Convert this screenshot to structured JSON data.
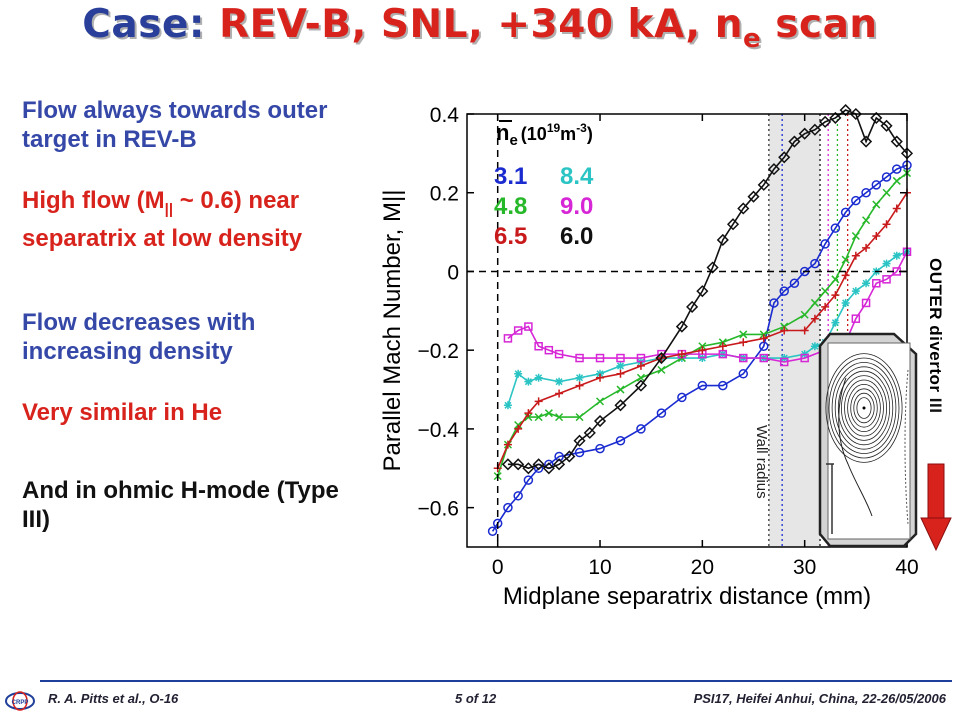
{
  "slide": {
    "title_case": "Case:",
    "title_main": "REV-B, SNL, +340 kA, n",
    "title_sub": "e",
    "title_end": " scan"
  },
  "bullets": {
    "b1": "Flow always towards outer target in REV-B",
    "b2_pre": "High flow (M",
    "b2_sub": "||",
    "b2_post": " ~ 0.6) near separatrix at low density",
    "b3": "Flow decreases with increasing density",
    "b4": "Very similar in He",
    "b5": "And in ohmic H-mode (Type III)"
  },
  "legend": {
    "header_sym": "n",
    "header_sub": "e",
    "header_unit": "(10",
    "header_exp": "19",
    "header_m": "m",
    "header_exp2": "-3",
    "header_close": ")",
    "entries": [
      {
        "label": "3.1",
        "color": "#1a2bd0"
      },
      {
        "label": "8.4",
        "color": "#2bc4c4"
      },
      {
        "label": "4.8",
        "color": "#27b82a"
      },
      {
        "label": "9.0",
        "color": "#d626d6"
      },
      {
        "label": "6.5",
        "color": "#c8191b"
      },
      {
        "label": "6.0",
        "color": "#111111"
      }
    ]
  },
  "annotations": {
    "wall_radius": "Wall radius",
    "outer_divertor": "OUTER divertor",
    "outer_divertor_sym": "III"
  },
  "footer": {
    "left": "R. A. Pitts et al., O-16",
    "center": "5 of 12",
    "right": "PSI17, Heifei Anhui, China, 22-26/05/2006",
    "logo_text": "CRPP"
  },
  "chart_data": {
    "type": "line",
    "xlabel": "Midplane separatrix distance (mm)",
    "ylabel": "Parallel Mach Number, M||",
    "xlim": [
      -3,
      40
    ],
    "ylim": [
      -0.7,
      0.4
    ],
    "xticks": [
      0,
      10,
      20,
      30,
      40
    ],
    "yticks": [
      0.4,
      0.2,
      0,
      -0.2,
      -0.4,
      -0.6
    ],
    "ytick_labels": [
      "0.4",
      "0.2",
      "0",
      "−0.2",
      "−0.4",
      "−0.6"
    ],
    "shaded_band": [
      26.5,
      31.5
    ],
    "series": [
      {
        "name": "3.1",
        "color": "#1a2bd0",
        "marker": "circle",
        "x": [
          -0.5,
          0,
          1,
          2,
          3,
          4,
          5,
          6,
          8,
          10,
          12,
          14,
          16,
          18,
          20,
          22,
          24,
          26,
          27,
          28,
          29,
          30,
          31,
          32,
          33,
          34,
          35,
          36,
          37,
          38,
          39,
          40
        ],
        "y": [
          -0.66,
          -0.64,
          -0.6,
          -0.57,
          -0.53,
          -0.5,
          -0.49,
          -0.47,
          -0.46,
          -0.45,
          -0.43,
          -0.4,
          -0.36,
          -0.32,
          -0.29,
          -0.29,
          -0.26,
          -0.19,
          -0.08,
          -0.05,
          -0.03,
          0,
          0.02,
          0.07,
          0.11,
          0.15,
          0.18,
          0.2,
          0.22,
          0.24,
          0.26,
          0.27
        ]
      },
      {
        "name": "8.4",
        "color": "#2bc4c4",
        "marker": "star",
        "x": [
          1,
          2,
          3,
          4,
          6,
          8,
          10,
          12,
          14,
          16,
          18,
          20,
          22,
          24,
          26,
          28,
          30,
          31,
          32,
          33,
          34,
          35,
          36,
          37,
          38,
          39,
          40
        ],
        "y": [
          -0.34,
          -0.26,
          -0.28,
          -0.27,
          -0.28,
          -0.27,
          -0.26,
          -0.24,
          -0.23,
          -0.22,
          -0.22,
          -0.22,
          -0.21,
          -0.22,
          -0.22,
          -0.22,
          -0.21,
          -0.19,
          -0.18,
          -0.13,
          -0.08,
          -0.05,
          -0.03,
          0,
          0.02,
          0.04,
          0.05
        ]
      },
      {
        "name": "4.8",
        "color": "#27b82a",
        "marker": "x",
        "x": [
          0,
          1,
          2,
          3,
          4,
          5,
          6,
          8,
          10,
          12,
          14,
          16,
          18,
          20,
          22,
          24,
          26,
          28,
          30,
          31,
          32,
          33,
          34,
          35,
          36,
          37,
          38,
          39,
          40
        ],
        "y": [
          -0.52,
          -0.44,
          -0.39,
          -0.37,
          -0.37,
          -0.36,
          -0.37,
          -0.37,
          -0.33,
          -0.3,
          -0.27,
          -0.25,
          -0.22,
          -0.19,
          -0.18,
          -0.16,
          -0.16,
          -0.14,
          -0.11,
          -0.08,
          -0.05,
          -0.02,
          0.03,
          0.09,
          0.13,
          0.17,
          0.2,
          0.23,
          0.25
        ]
      },
      {
        "name": "9.0",
        "color": "#d626d6",
        "marker": "square",
        "x": [
          1,
          2,
          3,
          4,
          5,
          6,
          8,
          10,
          12,
          14,
          16,
          18,
          20,
          22,
          24,
          26,
          28,
          30,
          32,
          33,
          34,
          35,
          36,
          37,
          38,
          39,
          40
        ],
        "y": [
          -0.17,
          -0.15,
          -0.14,
          -0.19,
          -0.2,
          -0.21,
          -0.22,
          -0.22,
          -0.22,
          -0.22,
          -0.21,
          -0.21,
          -0.21,
          -0.21,
          -0.22,
          -0.22,
          -0.23,
          -0.22,
          -0.2,
          -0.2,
          -0.18,
          -0.12,
          -0.08,
          -0.03,
          -0.02,
          0.0,
          0.05
        ]
      },
      {
        "name": "6.5",
        "color": "#c8191b",
        "marker": "plus",
        "x": [
          0,
          1,
          2,
          3,
          4,
          6,
          8,
          10,
          12,
          14,
          16,
          18,
          20,
          22,
          24,
          26,
          28,
          30,
          31,
          32,
          33,
          34,
          35,
          36,
          37,
          38,
          39,
          40
        ],
        "y": [
          -0.5,
          -0.44,
          -0.4,
          -0.36,
          -0.33,
          -0.31,
          -0.29,
          -0.27,
          -0.26,
          -0.24,
          -0.22,
          -0.21,
          -0.2,
          -0.19,
          -0.18,
          -0.17,
          -0.15,
          -0.15,
          -0.12,
          -0.09,
          -0.06,
          -0.01,
          0.04,
          0.06,
          0.09,
          0.12,
          0.16,
          0.2
        ]
      },
      {
        "name": "6.0",
        "color": "#111111",
        "marker": "diamond",
        "x": [
          1,
          2,
          3,
          4,
          5,
          6,
          7,
          8,
          9,
          10,
          12,
          14,
          16,
          18,
          19,
          20,
          21,
          22,
          23,
          24,
          25,
          26,
          27,
          28,
          29,
          30,
          31,
          32,
          33,
          34,
          35,
          36,
          37,
          38,
          39,
          40
        ],
        "y": [
          -0.49,
          -0.49,
          -0.5,
          -0.49,
          -0.5,
          -0.49,
          -0.47,
          -0.43,
          -0.41,
          -0.38,
          -0.34,
          -0.29,
          -0.22,
          -0.14,
          -0.09,
          -0.05,
          0.01,
          0.08,
          0.12,
          0.16,
          0.19,
          0.22,
          0.26,
          0.29,
          0.33,
          0.35,
          0.36,
          0.38,
          0.39,
          0.41,
          0.4,
          0.33,
          0.39,
          0.37,
          0.33,
          0.3
        ]
      }
    ]
  }
}
